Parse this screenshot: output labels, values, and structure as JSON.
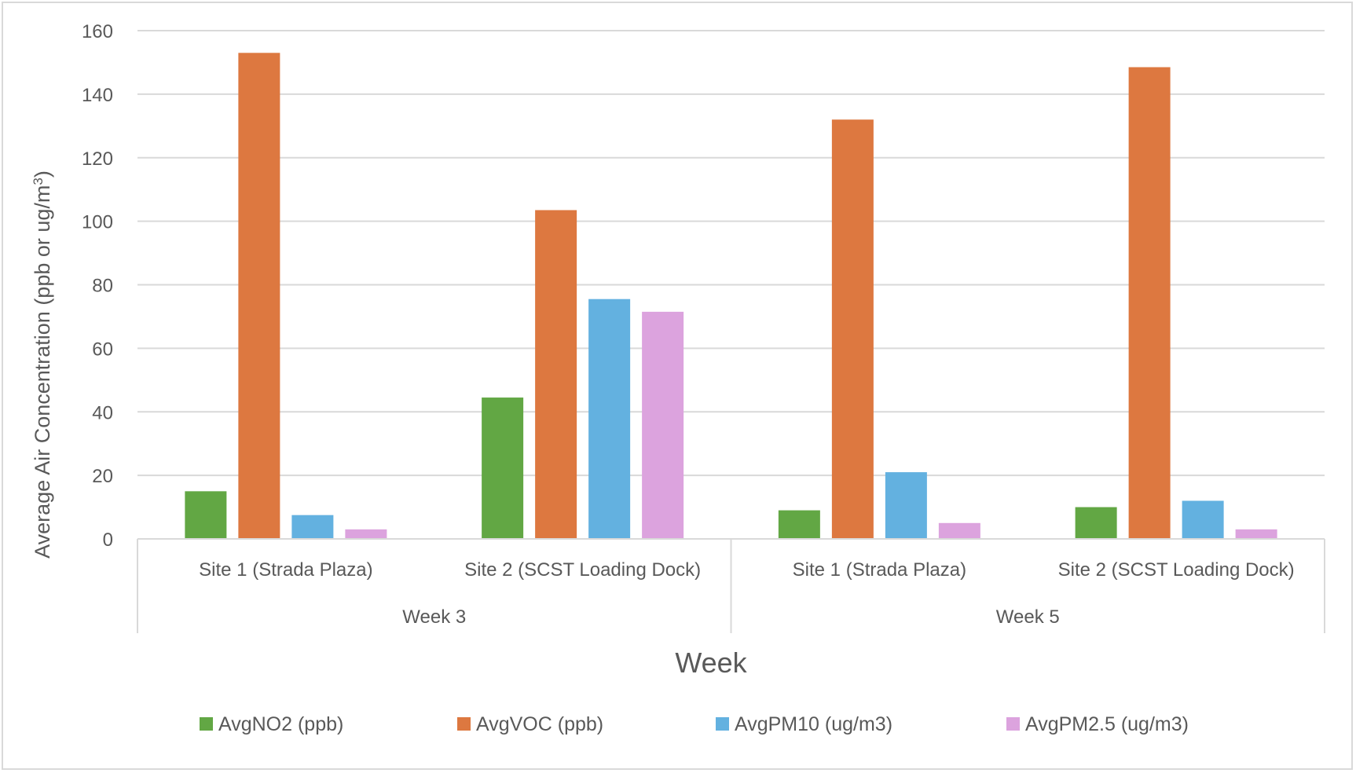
{
  "chart_data": {
    "type": "bar",
    "groups": [
      "Week 3",
      "Week 5"
    ],
    "categories": [
      "Site 1 (Strada Plaza)",
      "Site 2 (SCST Loading Dock)",
      "Site 1 (Strada Plaza)",
      "Site 2 (SCST Loading Dock)"
    ],
    "category_groups": [
      0,
      0,
      1,
      1
    ],
    "series": [
      {
        "name": "AvgNO2 (ppb)",
        "color": "#62a744",
        "values": [
          15,
          44.5,
          9,
          10
        ]
      },
      {
        "name": "AvgVOC (ppb)",
        "color": "#dd7840",
        "values": [
          153,
          103.5,
          132,
          148.5
        ]
      },
      {
        "name": "AvgPM10 (ug/m3)",
        "color": "#63b1e0",
        "values": [
          7.5,
          75.5,
          21,
          12
        ]
      },
      {
        "name": "AvgPM2.5 (ug/m3)",
        "color": "#dca3de",
        "values": [
          3,
          71.5,
          5,
          3
        ]
      }
    ],
    "yticks": [
      0,
      20,
      40,
      60,
      80,
      100,
      120,
      140,
      160
    ],
    "ylim": [
      0,
      160
    ],
    "xlabel": "Week",
    "ylabel_main": "Average Air Concentration (ppb or ug/m",
    "ylabel_sup": "3",
    "ylabel_end": ")",
    "grid": true,
    "legend": "bottom"
  }
}
